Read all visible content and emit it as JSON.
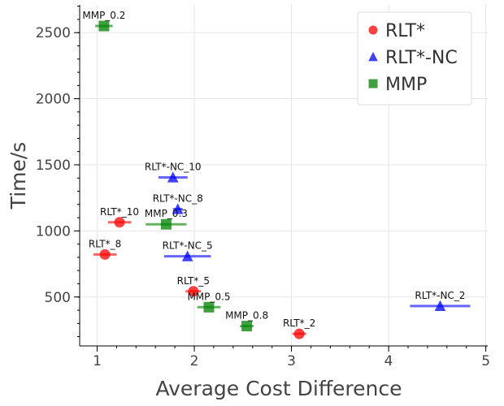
{
  "chart_data": {
    "type": "scatter",
    "xlabel": "Average Cost Difference",
    "ylabel": "Time/s",
    "xlim": [
      0.82,
      5.02
    ],
    "ylim": [
      130,
      2710
    ],
    "x_ticks": [
      1,
      2,
      3,
      4,
      5
    ],
    "y_ticks": [
      500,
      1000,
      1500,
      2000,
      2500
    ],
    "grid": true,
    "legend_position": "top-right",
    "series": [
      {
        "name": "RLT*",
        "marker": "circle",
        "color": "#ff0000",
        "points": [
          {
            "label": "RLT*_10",
            "x": 1.23,
            "y": 1065,
            "xerr": 0.12
          },
          {
            "label": "RLT*_8",
            "x": 1.08,
            "y": 822,
            "xerr": 0.12
          },
          {
            "label": "RLT*_5",
            "x": 1.99,
            "y": 543,
            "xerr": 0.08
          },
          {
            "label": "RLT*_2",
            "x": 3.08,
            "y": 221,
            "xerr": 0.07
          }
        ]
      },
      {
        "name": "RLT*-NC",
        "marker": "triangle",
        "color": "#0000ff",
        "points": [
          {
            "label": "RLT*-NC_10",
            "x": 1.78,
            "y": 1405,
            "xerr": 0.15
          },
          {
            "label": "RLT*-NC_8",
            "x": 1.83,
            "y": 1165,
            "xerr": 0.05
          },
          {
            "label": "RLT*-NC_5",
            "x": 1.93,
            "y": 808,
            "xerr": 0.24
          },
          {
            "label": "RLT*-NC_2",
            "x": 4.53,
            "y": 432,
            "xerr": 0.31
          }
        ]
      },
      {
        "name": "MMP",
        "marker": "square",
        "color": "#008000",
        "points": [
          {
            "label": "MMP_0.2",
            "x": 1.07,
            "y": 2550,
            "xerr": 0.09
          },
          {
            "label": "MMP_0.3",
            "x": 1.71,
            "y": 1050,
            "xerr": 0.21
          },
          {
            "label": "MMP_0.5",
            "x": 2.15,
            "y": 423,
            "xerr": 0.12
          },
          {
            "label": "MMP_0.8",
            "x": 2.54,
            "y": 280,
            "xerr": 0.07
          }
        ]
      }
    ]
  }
}
